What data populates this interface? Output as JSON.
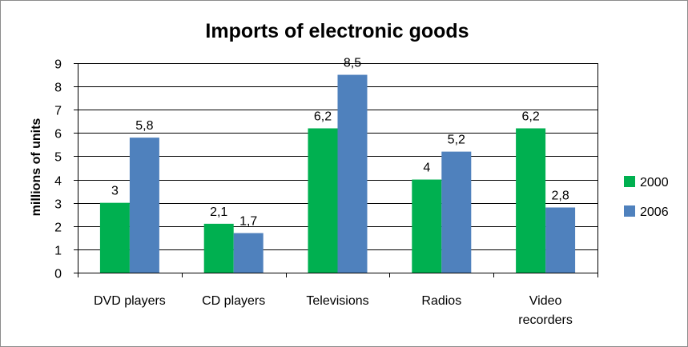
{
  "chart_data": {
    "type": "bar",
    "title": "Imports of electronic goods",
    "xlabel": "",
    "ylabel": "millions of units",
    "ylim": [
      0,
      9
    ],
    "yticks": [
      "0",
      "1",
      "2",
      "3",
      "4",
      "5",
      "6",
      "7",
      "8",
      "9"
    ],
    "categories": [
      [
        "DVD players"
      ],
      [
        "CD players"
      ],
      [
        "Televisions"
      ],
      [
        "Radios"
      ],
      [
        "Video",
        "recorders"
      ]
    ],
    "series": [
      {
        "name": "2000",
        "color": "#00b050",
        "values": [
          3,
          2.1,
          6.2,
          4,
          6.2
        ],
        "labels": [
          "3",
          "2,1",
          "6,2",
          "4",
          "6,2"
        ]
      },
      {
        "name": "2006",
        "color": "#4f81bd",
        "values": [
          5.8,
          1.7,
          8.5,
          5.2,
          2.8
        ],
        "labels": [
          "5,8",
          "1,7",
          "8,5",
          "5,2",
          "2,8"
        ]
      }
    ],
    "grid": true,
    "legend_position": "right"
  }
}
